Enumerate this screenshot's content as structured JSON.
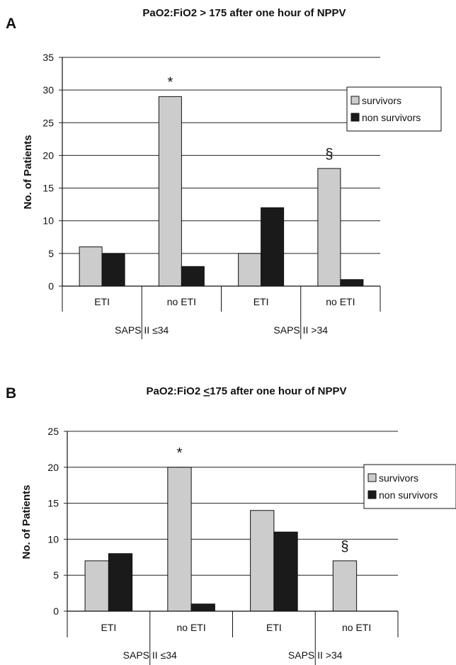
{
  "chart_data": [
    {
      "type": "bar",
      "panel": "A",
      "title_pre": "PaO2:FiO2 > 175 after one hour of NPPV",
      "title_ul": "",
      "title_post": "",
      "ylabel": "No. of Patients",
      "ylim": [
        0,
        35
      ],
      "yticks": [
        "0",
        "5",
        "10",
        "15",
        "20",
        "25",
        "30",
        "35"
      ],
      "categories": [
        "ETI",
        "no ETI",
        "ETI",
        "no ETI"
      ],
      "groups": [
        "SAPS II ≤34",
        "SAPS II >34"
      ],
      "series": [
        {
          "name": "survivors",
          "color": "#cccccc",
          "values": [
            6,
            29,
            5,
            18
          ]
        },
        {
          "name": "non survivors",
          "color": "#1a1a1a",
          "values": [
            5,
            3,
            12,
            1
          ]
        }
      ],
      "annotations": [
        {
          "text": "*",
          "category": 1,
          "value": 29
        },
        {
          "text": "§",
          "category": 3,
          "value": 18
        }
      ],
      "grid": true,
      "legend": "right"
    },
    {
      "type": "bar",
      "panel": "B",
      "title_pre": "PaO2:FiO2 ",
      "title_ul": "<",
      "title_post": "175 after one hour of NPPV",
      "ylabel": "No. of Patients",
      "ylim": [
        0,
        25
      ],
      "yticks": [
        "0",
        "5",
        "10",
        "15",
        "20",
        "25"
      ],
      "categories": [
        "ETI",
        "no ETI",
        "ETI",
        "no ETI"
      ],
      "groups": [
        "SAPS II ≤34",
        "SAPS II >34"
      ],
      "series": [
        {
          "name": "survivors",
          "color": "#cccccc",
          "values": [
            7,
            20,
            14,
            7
          ]
        },
        {
          "name": "non survivors",
          "color": "#1a1a1a",
          "values": [
            8,
            1,
            11,
            0
          ]
        }
      ],
      "annotations": [
        {
          "text": "*",
          "category": 1,
          "value": 20
        },
        {
          "text": "§",
          "category": 3,
          "value": 7
        }
      ],
      "grid": true,
      "legend": "right"
    }
  ]
}
